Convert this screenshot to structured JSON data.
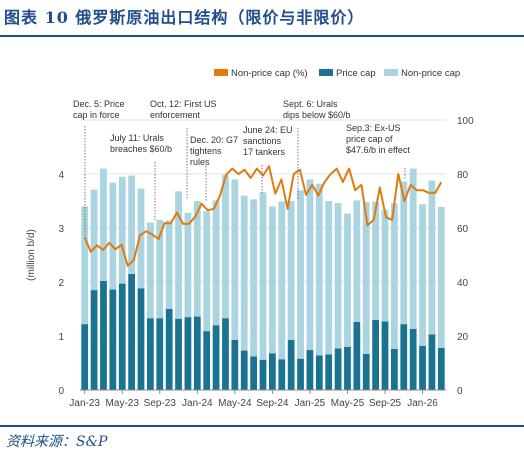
{
  "header": {
    "title": "图表  10    俄罗斯原油出口结构（限价与非限价）"
  },
  "footer": {
    "source": "资料来源：S&P"
  },
  "chart_data": {
    "type": "bar",
    "stacked": true,
    "legend": [
      "Non-price cap (%)",
      "Price cap",
      "Non-price cap"
    ],
    "legend_position": "top-right",
    "ylabel_left": "(million b/d)",
    "ylim_left": [
      0,
      5
    ],
    "yticks_left": [
      0,
      1,
      2,
      3,
      4
    ],
    "ylim_right": [
      0,
      100
    ],
    "yticks_right": [
      0,
      20,
      40,
      60,
      80,
      100
    ],
    "xtick_labels": [
      "Jan-23",
      "May-23",
      "Sep-23",
      "Jan-24",
      "May-24",
      "Sep-24",
      "Jan-25",
      "May-25",
      "Sep-25",
      "Jan-26"
    ],
    "colors": {
      "line": "#e07b10",
      "price_cap": "#1a7391",
      "non_price_cap": "#a9d4e0",
      "grid": "#d9d9d9",
      "text": "#444444"
    },
    "series": [
      {
        "name": "Price cap",
        "values": [
          1.22,
          1.85,
          2.02,
          1.86,
          1.97,
          2.15,
          1.88,
          1.33,
          1.33,
          1.5,
          1.32,
          1.35,
          1.36,
          1.09,
          1.2,
          1.33,
          0.93,
          0.73,
          0.62,
          0.56,
          0.68,
          0.57,
          0.93,
          0.58,
          0.74,
          0.64,
          0.66,
          0.77,
          0.8,
          1.26,
          0.67,
          1.3,
          1.27,
          0.76,
          1.22,
          1.13,
          0.82,
          1.03,
          0.78
        ]
      },
      {
        "name": "Non-price cap",
        "values": [
          2.18,
          1.86,
          2.08,
          1.98,
          1.98,
          1.82,
          1.85,
          1.77,
          1.82,
          1.64,
          2.36,
          1.93,
          2.14,
          2.22,
          2.31,
          2.65,
          2.97,
          2.87,
          2.91,
          3.1,
          2.72,
          2.92,
          2.57,
          3.12,
          3.16,
          3.18,
          2.84,
          2.69,
          2.47,
          2.25,
          2.81,
          2.19,
          2.07,
          2.7,
          2.64,
          2.97,
          2.62,
          2.85,
          2.61
        ]
      },
      {
        "name": "Non-price cap (%)",
        "axis": "right",
        "values": [
          56.5,
          51.2,
          53.6,
          51.9,
          54.5,
          52.1,
          53.8,
          46.0,
          48.2,
          57.3,
          58.8,
          57.6,
          55.9,
          61.8,
          61.7,
          65.7,
          61.5,
          61.6,
          64.3,
          69.0,
          66.6,
          67.1,
          72.0,
          79.7,
          82.0,
          80.0,
          81.6,
          78.5,
          82.0,
          79.4,
          82.9,
          72.7,
          78.0,
          67.1,
          80.0,
          81.6,
          72.3,
          76.0,
          72.0,
          77.0,
          80.0,
          82.0,
          77.0,
          82.0,
          74.0,
          76.0,
          61.0,
          63.0,
          75.0,
          64.0,
          63.0,
          80.0,
          70.0,
          76.0,
          74.0,
          74.0,
          73.0,
          73.0,
          77.0
        ]
      }
    ],
    "annotations": [
      {
        "text": [
          "Dec. 5: Price",
          "cap in force"
        ]
      },
      {
        "text": [
          "July 11: Urals",
          "breaches $60/b"
        ]
      },
      {
        "text": [
          "Oct. 12: First US",
          "enforcement"
        ]
      },
      {
        "text": [
          "Dec. 20: G7",
          "tightens",
          "rules"
        ]
      },
      {
        "text": [
          "June 24: EU",
          "sanctions",
          "17 tankers"
        ]
      },
      {
        "text": [
          "Sept. 6: Urals",
          "dips below $60/b"
        ]
      },
      {
        "text": [
          "Sep.3: Ex-US",
          "price cap of",
          "$47.6/b in effect"
        ]
      }
    ]
  }
}
